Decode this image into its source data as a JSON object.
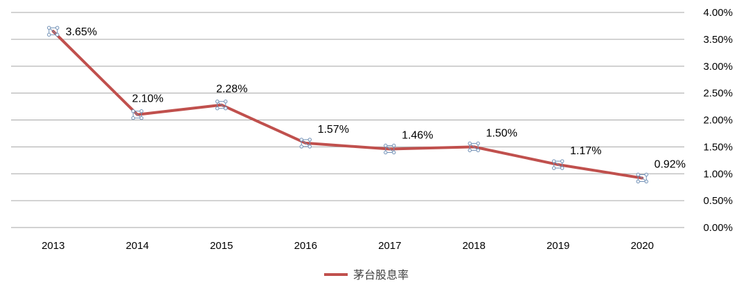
{
  "chart_data": {
    "type": "line",
    "categories": [
      "2013",
      "2014",
      "2015",
      "2016",
      "2017",
      "2018",
      "2019",
      "2020"
    ],
    "series": [
      {
        "name": "茅台股息率",
        "values": [
          3.65,
          2.1,
          2.28,
          1.57,
          1.46,
          1.5,
          1.17,
          0.92
        ],
        "data_labels": [
          "3.65%",
          "2.10%",
          "2.28%",
          "1.57%",
          "1.46%",
          "1.50%",
          "1.17%",
          "0.92%"
        ],
        "color": "#c0504d"
      }
    ],
    "y_ticks": [
      "0.00%",
      "0.50%",
      "1.00%",
      "1.50%",
      "2.00%",
      "2.50%",
      "3.00%",
      "3.50%",
      "4.00%"
    ],
    "ylim": [
      0,
      4
    ],
    "y_axis_side": "right",
    "grid": true,
    "legend": "bottom-center",
    "gridline_color": "#a6a6a6",
    "handle_color": "#6f8fb5"
  }
}
